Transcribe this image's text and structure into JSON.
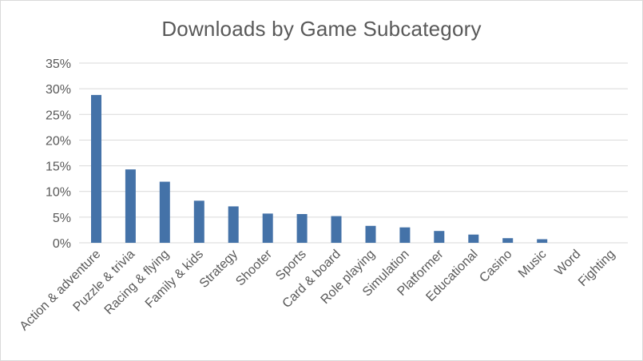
{
  "chart_data": {
    "type": "bar",
    "title": "Downloads by Game Subcategory",
    "xlabel": "",
    "ylabel": "",
    "categories": [
      "Action & adventure",
      "Puzzle & trivia",
      "Racing & flying",
      "Family & kids",
      "Strategy",
      "Shooter",
      "Sports",
      "Card & board",
      "Role playing",
      "Simulation",
      "Platformer",
      "Educational",
      "Casino",
      "Music",
      "Word",
      "Fighting"
    ],
    "values": [
      28.8,
      14.3,
      11.9,
      8.2,
      7.1,
      5.7,
      5.6,
      5.2,
      3.3,
      3.0,
      2.3,
      1.6,
      0.9,
      0.7,
      0.0,
      0.0
    ],
    "ylim": [
      0,
      35
    ],
    "yticks": [
      {
        "value": 0,
        "label": "0%"
      },
      {
        "value": 5,
        "label": "5%"
      },
      {
        "value": 10,
        "label": "10%"
      },
      {
        "value": 15,
        "label": "15%"
      },
      {
        "value": 20,
        "label": "20%"
      },
      {
        "value": 25,
        "label": "25%"
      },
      {
        "value": 30,
        "label": "30%"
      },
      {
        "value": 35,
        "label": "35%"
      }
    ],
    "grid": true,
    "legend": "none",
    "colors": {
      "bar": "#4472a8",
      "grid": "#d9d9d9",
      "text": "#595959"
    }
  }
}
